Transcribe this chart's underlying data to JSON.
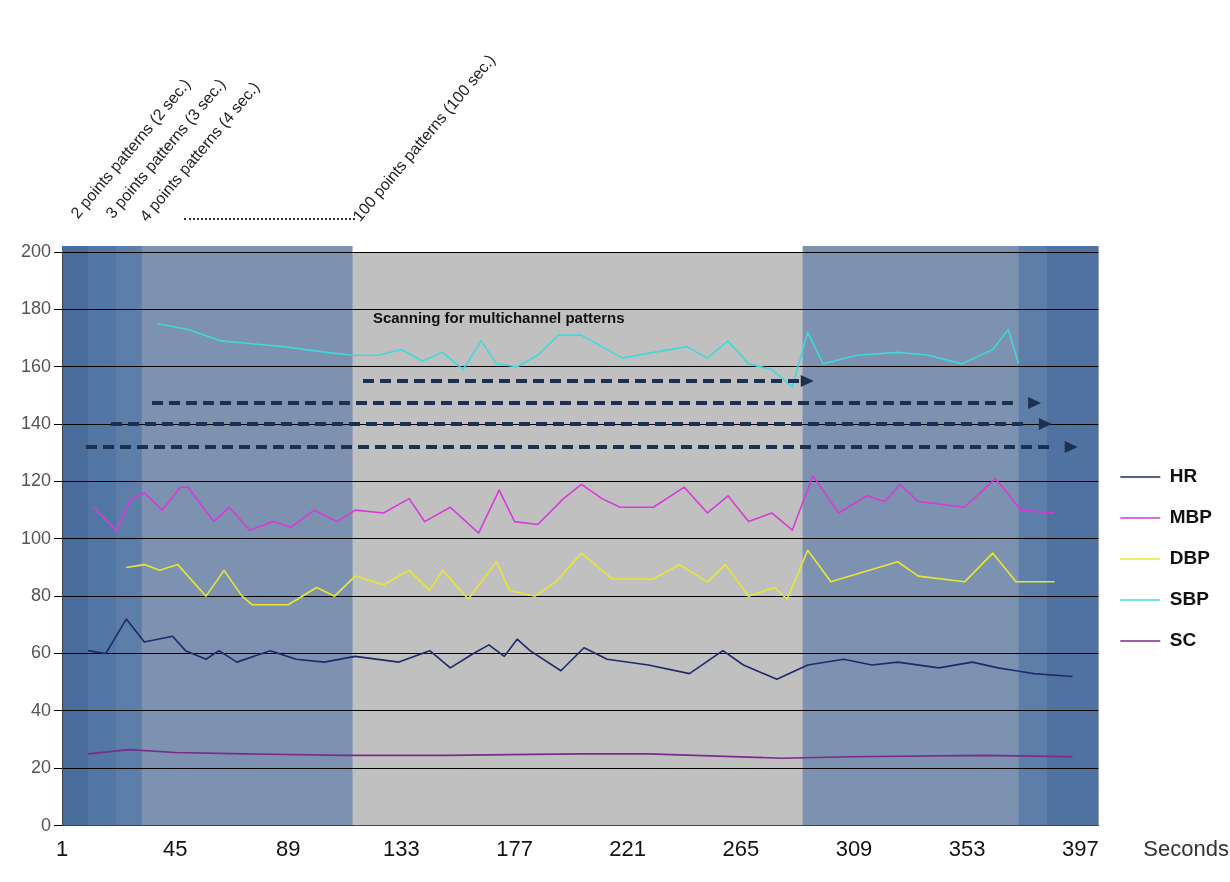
{
  "chart_data": {
    "type": "line",
    "xlabel": "Seconds",
    "xlim": [
      1,
      404
    ],
    "xticks": [
      1,
      45,
      89,
      133,
      177,
      221,
      265,
      309,
      353,
      397
    ],
    "ylim": [
      0,
      200
    ],
    "yticks": [
      0,
      20,
      40,
      60,
      80,
      100,
      120,
      140,
      160,
      180,
      200
    ],
    "grid": "y",
    "legend": "right",
    "annotations": [
      "2 points patterns (2 sec.)",
      "3 points patterns (3 sec.)",
      "4 points patterns (4 sec.)",
      "100 points patterns (100 sec.)",
      "Scanning for multichannel patterns"
    ],
    "bands": [
      {
        "axis": "x",
        "from": 1,
        "to": 114,
        "color": "#7d91b1"
      },
      {
        "axis": "x",
        "from": 1,
        "to": 32,
        "color": "#5d7ea9"
      },
      {
        "axis": "x",
        "from": 1,
        "to": 22,
        "color": "#5377a4"
      },
      {
        "axis": "x",
        "from": 1,
        "to": 11,
        "color": "#4a6d9c"
      },
      {
        "axis": "x",
        "from": 289,
        "to": 404,
        "color": "#7d91b1"
      },
      {
        "axis": "x",
        "from": 373,
        "to": 404,
        "color": "#5d7ea9"
      },
      {
        "axis": "x",
        "from": 384,
        "to": 404,
        "color": "#4f72a0"
      }
    ],
    "series": [
      {
        "name": "HR",
        "color": "#1f2a6b",
        "x": [
          11,
          18,
          26,
          33,
          44,
          49,
          57,
          62,
          69,
          82,
          92,
          103,
          115,
          132,
          144,
          152,
          161,
          167,
          173,
          178,
          183,
          195,
          204,
          213,
          229,
          245,
          258,
          266,
          279,
          291,
          305,
          316,
          326,
          342,
          355,
          365,
          379,
          394
        ],
        "values": [
          61,
          60,
          72,
          64,
          66,
          61,
          58,
          61,
          57,
          61,
          58,
          57,
          59,
          57,
          61,
          55,
          60,
          63,
          59,
          65,
          61,
          54,
          62,
          58,
          56,
          53,
          61,
          56,
          51,
          56,
          58,
          56,
          57,
          55,
          57,
          55,
          53,
          52
        ]
      },
      {
        "name": "MBP",
        "color": "#d63bd6",
        "x": [
          13,
          22,
          28,
          33,
          40,
          47,
          50,
          60,
          66,
          74,
          83,
          90,
          99,
          108,
          115,
          126,
          136,
          142,
          152,
          163,
          171,
          177,
          186,
          196,
          203,
          211,
          218,
          231,
          243,
          252,
          260,
          268,
          277,
          285,
          293,
          303,
          314,
          321,
          327,
          334,
          352,
          364,
          374,
          387
        ],
        "values": [
          111,
          103,
          114,
          116,
          110,
          118,
          118,
          106,
          111,
          103,
          106,
          104,
          110,
          106,
          110,
          109,
          114,
          106,
          111,
          102,
          117,
          106,
          105,
          114,
          119,
          114,
          111,
          111,
          118,
          109,
          115,
          106,
          109,
          103,
          122,
          109,
          115,
          113,
          119,
          113,
          111,
          121,
          110,
          109
        ]
      },
      {
        "name": "DBP",
        "color": "#e8e830",
        "x": [
          26,
          33,
          39,
          46,
          57,
          64,
          71,
          75,
          89,
          100,
          107,
          115,
          126,
          136,
          144,
          149,
          159,
          170,
          175,
          185,
          193,
          203,
          215,
          231,
          241,
          252,
          259,
          268,
          278,
          283,
          291,
          300,
          326,
          334,
          352,
          363,
          372,
          387
        ],
        "values": [
          90,
          91,
          89,
          91,
          80,
          89,
          80,
          77,
          77,
          83,
          80,
          87,
          84,
          89,
          82,
          89,
          79,
          92,
          82,
          80,
          85,
          95,
          86,
          86,
          91,
          85,
          91,
          80,
          83,
          79,
          96,
          85,
          92,
          87,
          85,
          95,
          85,
          85
        ]
      },
      {
        "name": "SBP",
        "color": "#40d8d8",
        "x": [
          38,
          50,
          63,
          75,
          87,
          104,
          114,
          124,
          133,
          141,
          149,
          157,
          164,
          170,
          178,
          186,
          194,
          203,
          211,
          219,
          231,
          244,
          252,
          260,
          268,
          277,
          285,
          291,
          297,
          310,
          326,
          338,
          351,
          363,
          369,
          373
        ],
        "values": [
          175,
          173,
          169,
          168,
          167,
          165,
          164,
          164,
          166,
          162,
          165,
          159,
          169,
          161,
          160,
          164,
          171,
          171,
          167,
          163,
          165,
          167,
          163,
          169,
          161,
          159,
          153,
          172,
          161,
          164,
          165,
          164,
          161,
          166,
          173,
          161
        ]
      },
      {
        "name": "SC",
        "color": "#7a2a8a",
        "x": [
          11,
          27,
          45,
          72,
          111,
          150,
          203,
          229,
          281,
          308,
          360,
          394
        ],
        "values": [
          25,
          26.5,
          25.5,
          25,
          24.5,
          24.5,
          25,
          25,
          23.5,
          24,
          24.5,
          24
        ]
      }
    ]
  }
}
